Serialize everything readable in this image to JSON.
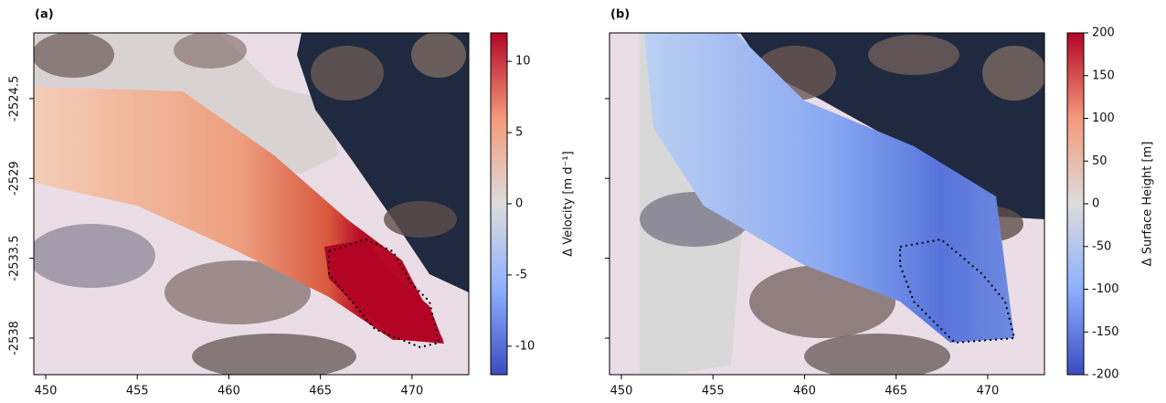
{
  "chart_data": [
    {
      "type": "heatmap",
      "panel_label": "(a)",
      "xlim": [
        449.35,
        473.1
      ],
      "ylim": [
        -2540.06,
        -2520.8
      ],
      "xticks": [
        450,
        455,
        460,
        465,
        470
      ],
      "yticks": [
        -2524.5,
        -2529,
        -2533.5,
        -2538
      ],
      "show_ytick_labels": true,
      "colorbar": {
        "label": "Δ Velocity [m d⁻¹]",
        "lim": [
          -12,
          12
        ],
        "ticks": [
          -10,
          -5,
          0,
          5,
          10
        ],
        "colormap": [
          "#3b4cc0",
          "#8db0fe",
          "#dddcdc",
          "#f49a7b",
          "#b40426"
        ]
      }
    },
    {
      "type": "heatmap",
      "panel_label": "(b)",
      "xlim": [
        449.35,
        473.1
      ],
      "ylim": [
        -2540.06,
        -2520.8
      ],
      "xticks": [
        450,
        455,
        460,
        465,
        470
      ],
      "yticks": [
        -2524.5,
        -2529,
        -2533.5,
        -2538
      ],
      "show_ytick_labels": false,
      "colorbar": {
        "label": "Δ Surface Height [m]",
        "lim": [
          -200,
          200
        ],
        "ticks": [
          -200,
          -150,
          -100,
          -50,
          0,
          50,
          100,
          150,
          200
        ],
        "colormap": [
          "#3b4cc0",
          "#8db0fe",
          "#dddcdc",
          "#f49a7b",
          "#b40426"
        ]
      }
    }
  ]
}
